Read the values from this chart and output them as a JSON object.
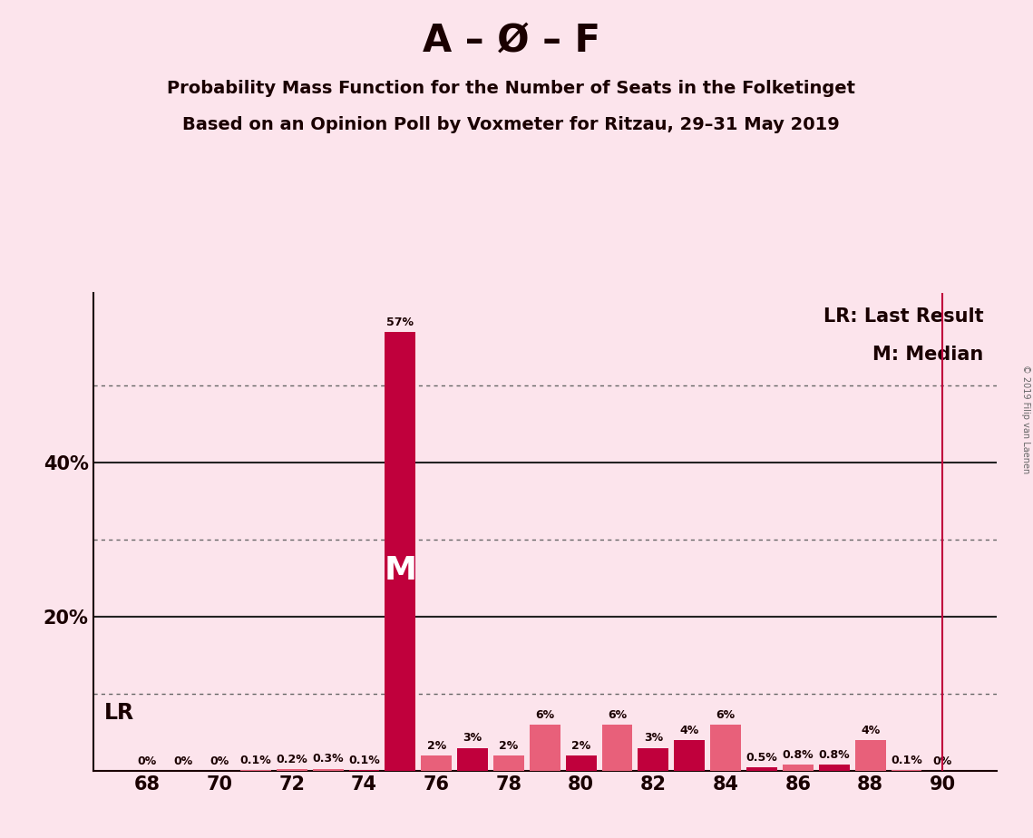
{
  "title_main": "A – Ø – F",
  "title_sub1": "Probability Mass Function for the Number of Seats in the Folketinget",
  "title_sub2": "Based on an Opinion Poll by Voxmeter for Ritzau, 29–31 May 2019",
  "copyright": "© 2019 Filip van Laenen",
  "legend_lr": "LR: Last Result",
  "legend_m": "M: Median",
  "background_color": "#fce4ec",
  "bar_color_dark": "#c0003c",
  "bar_color_light": "#e8607a",
  "median_seat": 75,
  "lr_seat": 90,
  "seats": [
    68,
    69,
    70,
    71,
    72,
    73,
    74,
    75,
    76,
    77,
    78,
    79,
    80,
    81,
    82,
    83,
    84,
    85,
    86,
    87,
    88,
    89,
    90
  ],
  "probabilities": [
    0.0,
    0.0,
    0.0,
    0.1,
    0.2,
    0.3,
    0.1,
    57.0,
    2.0,
    3.0,
    2.0,
    6.0,
    2.0,
    6.0,
    3.0,
    4.0,
    6.0,
    0.5,
    0.8,
    0.8,
    4.0,
    0.1,
    0.0
  ],
  "bar_colors": [
    "#e8607a",
    "#e8607a",
    "#e8607a",
    "#e8607a",
    "#e8607a",
    "#e8607a",
    "#c0003c",
    "#c0003c",
    "#e8607a",
    "#c0003c",
    "#e8607a",
    "#e8607a",
    "#c0003c",
    "#e8607a",
    "#c0003c",
    "#c0003c",
    "#e8607a",
    "#c0003c",
    "#e8607a",
    "#c0003c",
    "#e8607a",
    "#e8607a",
    "#e8607a"
  ],
  "xlim_min": 66.5,
  "xlim_max": 91.5,
  "ylim_min": 0,
  "ylim_max": 62,
  "solid_lines": [
    20,
    40
  ],
  "dotted_lines": [
    10,
    30,
    50
  ],
  "xtick_positions": [
    68,
    70,
    72,
    74,
    76,
    78,
    80,
    82,
    84,
    86,
    88,
    90
  ],
  "ytick_positions": [
    20,
    40
  ],
  "ytick_labels": {
    "20": "20%",
    "40": "40%"
  },
  "title_fontsize": 30,
  "subtitle_fontsize": 14,
  "tick_fontsize": 15,
  "bar_label_fontsize": 9,
  "lr_label_fontsize": 17,
  "legend_fontsize": 15
}
